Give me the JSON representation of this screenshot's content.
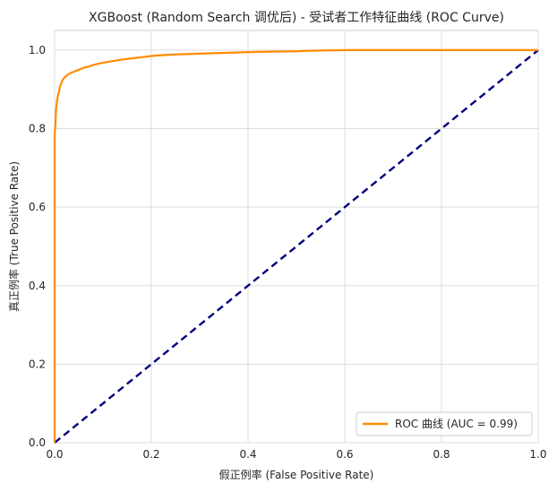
{
  "chart_data": {
    "type": "line",
    "title": "XGBoost (Random Search 调优后) - 受试者工作特征曲线 (ROC Curve)",
    "xlabel": "假正例率 (False Positive Rate)",
    "ylabel": "真正例率 (True Positive Rate)",
    "xlim": [
      0,
      1
    ],
    "ylim": [
      0,
      1.05
    ],
    "xticks": [
      0,
      0.2,
      0.4,
      0.6,
      0.8,
      1.0
    ],
    "xtick_labels": [
      "0.0",
      "0.2",
      "0.4",
      "0.6",
      "0.8",
      "1.0"
    ],
    "yticks": [
      0,
      0.2,
      0.4,
      0.6,
      0.8,
      1.0
    ],
    "ytick_labels": [
      "0.0",
      "0.2",
      "0.4",
      "0.6",
      "0.8",
      "1.0"
    ],
    "grid": true,
    "legend_position": "lower-right",
    "series": [
      {
        "name": "ROC 曲线 (AUC = 0.99)",
        "color": "#ff8c00",
        "style": "solid",
        "x": [
          0,
          0,
          0.002,
          0.003,
          0.005,
          0.007,
          0.01,
          0.012,
          0.015,
          0.02,
          0.025,
          0.03,
          0.04,
          0.05,
          0.06,
          0.07,
          0.08,
          0.09,
          0.1,
          0.12,
          0.14,
          0.16,
          0.18,
          0.2,
          0.22,
          0.25,
          0.3,
          0.35,
          0.4,
          0.45,
          0.5,
          0.52,
          0.55,
          0.6,
          0.7,
          0.8,
          0.9,
          1.0
        ],
        "y": [
          0,
          0.78,
          0.82,
          0.85,
          0.87,
          0.885,
          0.9,
          0.91,
          0.92,
          0.93,
          0.935,
          0.94,
          0.945,
          0.95,
          0.955,
          0.958,
          0.962,
          0.965,
          0.968,
          0.972,
          0.976,
          0.979,
          0.982,
          0.985,
          0.987,
          0.989,
          0.991,
          0.993,
          0.995,
          0.996,
          0.997,
          0.998,
          0.999,
          1.0,
          1.0,
          1.0,
          1.0,
          1.0
        ]
      },
      {
        "name": "",
        "color": "#000080",
        "style": "dashed",
        "x": [
          0,
          1
        ],
        "y": [
          0,
          1
        ]
      }
    ]
  }
}
